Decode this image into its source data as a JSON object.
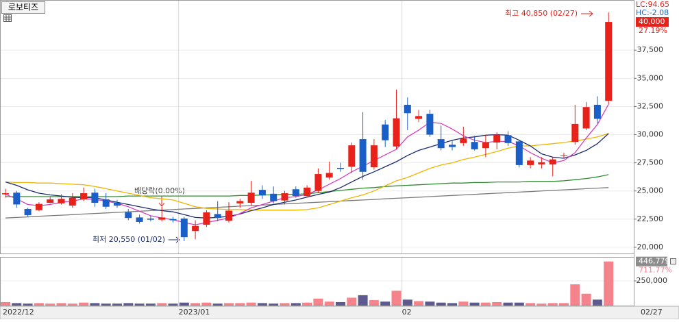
{
  "header": {
    "title": "로보티즈"
  },
  "chart_data": {
    "type": "candlestick",
    "categories": [
      "2022/12",
      null,
      null,
      null,
      null,
      null,
      null,
      null,
      null,
      null,
      null,
      null,
      null,
      null,
      null,
      null,
      "2023/01",
      null,
      null,
      null,
      null,
      null,
      null,
      null,
      null,
      null,
      null,
      null,
      null,
      null,
      null,
      null,
      null,
      null,
      null,
      null,
      "02",
      null,
      null,
      null,
      null,
      null,
      null,
      null,
      null,
      null,
      null,
      null,
      null,
      null,
      null,
      null,
      null,
      null,
      "02/27"
    ],
    "open": [
      24700,
      24850,
      23400,
      23300,
      23950,
      23900,
      23700,
      24250,
      24850,
      24250,
      23950,
      23100,
      22650,
      22550,
      22450,
      22500,
      22550,
      21450,
      22000,
      22950,
      22350,
      23900,
      23950,
      25100,
      24750,
      24150,
      25150,
      24550,
      25000,
      26200,
      27050,
      27150,
      29600,
      27100,
      30900,
      28950,
      32650,
      31400,
      31850,
      29600,
      29100,
      29250,
      29350,
      28800,
      29300,
      29950,
      29400,
      27300,
      27350,
      27350,
      28100,
      29350,
      30550,
      32650,
      33000
    ],
    "high": [
      25200,
      25000,
      23500,
      24000,
      24500,
      24700,
      24800,
      25300,
      25200,
      24800,
      24200,
      23400,
      22900,
      22800,
      23600,
      22700,
      22700,
      22400,
      23300,
      24100,
      24000,
      24300,
      25900,
      25500,
      25400,
      25000,
      25400,
      25500,
      27000,
      27600,
      27500,
      29300,
      32000,
      29600,
      31300,
      34000,
      33300,
      32200,
      32200,
      30800,
      29500,
      30700,
      29900,
      30000,
      30200,
      30300,
      29500,
      28000,
      28000,
      28000,
      28400,
      32650,
      32900,
      33400,
      40850
    ],
    "low": [
      24400,
      23500,
      22700,
      23200,
      23900,
      23800,
      23500,
      24100,
      23600,
      23400,
      23500,
      22400,
      22100,
      22300,
      22300,
      22200,
      20550,
      20700,
      21800,
      22300,
      22200,
      23500,
      23700,
      24300,
      23900,
      23800,
      24400,
      24400,
      24800,
      26000,
      26700,
      26600,
      26000,
      26900,
      28900,
      28700,
      30400,
      31100,
      29800,
      28600,
      28600,
      29000,
      28600,
      28000,
      28700,
      29000,
      27100,
      27000,
      27000,
      26300,
      27900,
      29100,
      30400,
      31000,
      32700
    ],
    "close": [
      24800,
      23800,
      22850,
      23850,
      24250,
      24300,
      24400,
      24800,
      23950,
      23600,
      23700,
      22600,
      22250,
      22450,
      22650,
      22400,
      20900,
      21900,
      23100,
      22600,
      23250,
      24100,
      24850,
      24600,
      24100,
      24800,
      24550,
      25300,
      26500,
      26600,
      26950,
      29050,
      26700,
      29050,
      29500,
      31450,
      31900,
      31650,
      30000,
      28800,
      28900,
      29650,
      28700,
      29300,
      30000,
      29250,
      27300,
      27700,
      27550,
      27800,
      28150,
      30950,
      32450,
      31400,
      40000
    ],
    "up_color": "#e8221a",
    "down_color": "#1a5fc8",
    "ylim": [
      19450,
      41950
    ],
    "yticks": [
      {
        "value": 20000,
        "label": "20,000"
      },
      {
        "value": 22500,
        "label": "22,500"
      },
      {
        "value": 25000,
        "label": "25,000"
      },
      {
        "value": 27500,
        "label": "27,500"
      },
      {
        "value": 30000,
        "label": "30,000"
      },
      {
        "value": 32500,
        "label": "32,500"
      },
      {
        "value": 35000,
        "label": "35,000"
      },
      {
        "value": 37500,
        "label": "37,500"
      }
    ],
    "grid": true,
    "moving_averages": [
      {
        "color": "#7a7a7a",
        "values": [
          22600,
          22650,
          22700,
          22750,
          22800,
          22850,
          22900,
          22950,
          23000,
          23050,
          23100,
          23150,
          23200,
          23250,
          23300,
          23350,
          23400,
          23450,
          23500,
          23550,
          23600,
          23650,
          23700,
          23750,
          23800,
          23850,
          23900,
          23950,
          24000,
          24050,
          24100,
          24150,
          24200,
          24250,
          24300,
          24350,
          24400,
          24450,
          24500,
          24550,
          24600,
          24650,
          24700,
          24750,
          24800,
          24850,
          24900,
          24950,
          25000,
          25050,
          25100,
          25150,
          25200,
          25250,
          25300
        ]
      },
      {
        "color": "#2e8b2e",
        "values": [
          24500,
          24500,
          24500,
          24500,
          24500,
          24500,
          24500,
          24500,
          24500,
          24500,
          24500,
          24550,
          24550,
          24550,
          24550,
          24550,
          24550,
          24550,
          24550,
          24550,
          24550,
          24600,
          24600,
          24650,
          24650,
          24700,
          24700,
          24750,
          24850,
          24950,
          25050,
          25150,
          25250,
          25300,
          25400,
          25450,
          25500,
          25550,
          25600,
          25650,
          25700,
          25700,
          25750,
          25750,
          25800,
          25800,
          25800,
          25850,
          25850,
          25850,
          25900,
          26000,
          26100,
          26250,
          26450
        ]
      },
      {
        "color": "#f0b400",
        "values": [
          25800,
          25750,
          25750,
          25700,
          25700,
          25650,
          25600,
          25550,
          25400,
          25200,
          25000,
          24800,
          24600,
          24400,
          24300,
          24200,
          23900,
          23600,
          23450,
          23400,
          23350,
          23350,
          23300,
          23300,
          23300,
          23300,
          23300,
          23350,
          23500,
          23800,
          24100,
          24400,
          24650,
          25000,
          25450,
          25900,
          26200,
          26600,
          27000,
          27300,
          27500,
          27800,
          28000,
          28250,
          28500,
          28800,
          29000,
          29000,
          29100,
          29200,
          29300,
          29450,
          29600,
          29800,
          30100
        ]
      },
      {
        "color": "#1a2b6e",
        "values": [
          25800,
          25500,
          25100,
          24800,
          24650,
          24550,
          24450,
          24400,
          24400,
          24200,
          24000,
          23800,
          23600,
          23400,
          23250,
          23150,
          22900,
          22650,
          22600,
          22650,
          22750,
          22950,
          23250,
          23500,
          23800,
          24000,
          24200,
          24450,
          24700,
          24900,
          25300,
          25800,
          26300,
          26700,
          27150,
          27600,
          28150,
          28600,
          28900,
          29200,
          29500,
          29700,
          29800,
          29950,
          30000,
          29950,
          29500,
          29000,
          28300,
          28000,
          27900,
          28200,
          28600,
          29200,
          30100
        ]
      },
      {
        "color": "#d63fbf",
        "values": [
          24700,
          24300,
          23800,
          23700,
          23800,
          24000,
          24100,
          24300,
          24250,
          24100,
          23900,
          23600,
          23200,
          22800,
          22600,
          22450,
          22200,
          22000,
          22200,
          22400,
          22600,
          23000,
          23500,
          23800,
          24100,
          24400,
          24500,
          24700,
          25100,
          25600,
          26100,
          26700,
          27200,
          27700,
          28200,
          28700,
          29800,
          30400,
          31100,
          31000,
          30500,
          29900,
          29500,
          29300,
          29400,
          29400,
          29000,
          28400,
          27900,
          27500,
          27700,
          28400,
          29700,
          30900,
          32700
        ]
      }
    ],
    "price_marker": {
      "value": 40000,
      "label": "40,000"
    },
    "change_label": "27.19%",
    "indicators": [
      "LC:94.65",
      "HC:-2.08"
    ],
    "annotations": [
      "최고 40,850 (02/27)",
      "최저 20,550 (01/02)",
      "배당락(0.00%)"
    ],
    "volume": {
      "values": [
        35000,
        25000,
        20000,
        25000,
        20000,
        25000,
        20000,
        30000,
        25000,
        20000,
        20000,
        25000,
        20000,
        20000,
        25000,
        20000,
        30000,
        25000,
        30000,
        20000,
        25000,
        25000,
        30000,
        25000,
        20000,
        25000,
        25000,
        30000,
        70000,
        40000,
        35000,
        80000,
        105000,
        55000,
        40000,
        150000,
        60000,
        45000,
        40000,
        30000,
        25000,
        40000,
        30000,
        30000,
        35000,
        30000,
        30000,
        25000,
        20000,
        25000,
        25000,
        215000,
        120000,
        60000,
        446779
      ],
      "up_color": "#f5838c",
      "down_color": "#5c5a8e",
      "ylim": [
        0,
        493000
      ],
      "yticks": [
        {
          "value": 250000,
          "label": "250,000"
        }
      ],
      "marker": {
        "value": 446779,
        "label": "446,779"
      },
      "change_label": "711.77%"
    }
  }
}
